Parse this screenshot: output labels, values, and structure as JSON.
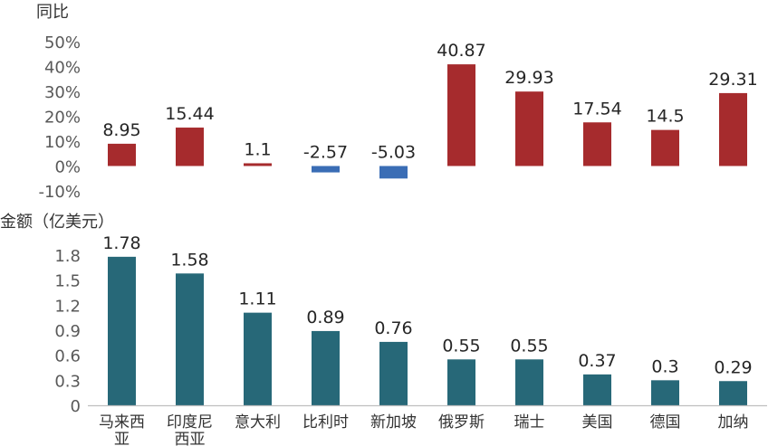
{
  "chart_data": [
    {
      "type": "bar",
      "ylabel": "同比",
      "categories": [
        "马来西亚",
        "印度尼西亚",
        "意大利",
        "比利时",
        "新加坡",
        "俄罗斯",
        "瑞士",
        "美国",
        "德国",
        "加纳"
      ],
      "values": [
        8.95,
        15.44,
        1.1,
        -2.57,
        -5.03,
        40.87,
        29.93,
        17.54,
        14.5,
        29.31
      ],
      "value_labels": [
        "8.95",
        "15.44",
        "1.1",
        "-2.57",
        "-5.03",
        "40.87",
        "29.93",
        "17.54",
        "14.5",
        "29.31"
      ],
      "ylim": [
        -10,
        50
      ],
      "yticks": [
        -10,
        0,
        10,
        20,
        30,
        40,
        50
      ],
      "ytick_labels": [
        "-10%",
        "0%",
        "10%",
        "20%",
        "30%",
        "40%",
        "50%"
      ],
      "colors": {
        "positive": "#a62b2d",
        "negative": "#3a6db5"
      }
    },
    {
      "type": "bar",
      "ylabel": "金额（亿美元）",
      "categories": [
        "马来西亚",
        "印度尼西亚",
        "意大利",
        "比利时",
        "新加坡",
        "俄罗斯",
        "瑞士",
        "美国",
        "德国",
        "加纳"
      ],
      "category_lines": [
        [
          "马来西",
          "亚"
        ],
        [
          "印度尼",
          "西亚"
        ],
        [
          "意大利"
        ],
        [
          "比利时"
        ],
        [
          "新加坡"
        ],
        [
          "俄罗斯"
        ],
        [
          "瑞士"
        ],
        [
          "美国"
        ],
        [
          "德国"
        ],
        [
          "加纳"
        ]
      ],
      "values": [
        1.78,
        1.58,
        1.11,
        0.89,
        0.76,
        0.55,
        0.55,
        0.37,
        0.3,
        0.29
      ],
      "value_labels": [
        "1.78",
        "1.58",
        "1.11",
        "0.89",
        "0.76",
        "0.55",
        "0.55",
        "0.37",
        "0.3",
        "0.29"
      ],
      "ylim": [
        0,
        1.8
      ],
      "yticks": [
        0,
        0.3,
        0.6,
        0.9,
        1.2,
        1.5,
        1.8
      ],
      "ytick_labels": [
        "0",
        "0.3",
        "0.6",
        "0.9",
        "1.2",
        "1.5",
        "1.8"
      ],
      "colors": {
        "bar": "#276878"
      }
    }
  ]
}
